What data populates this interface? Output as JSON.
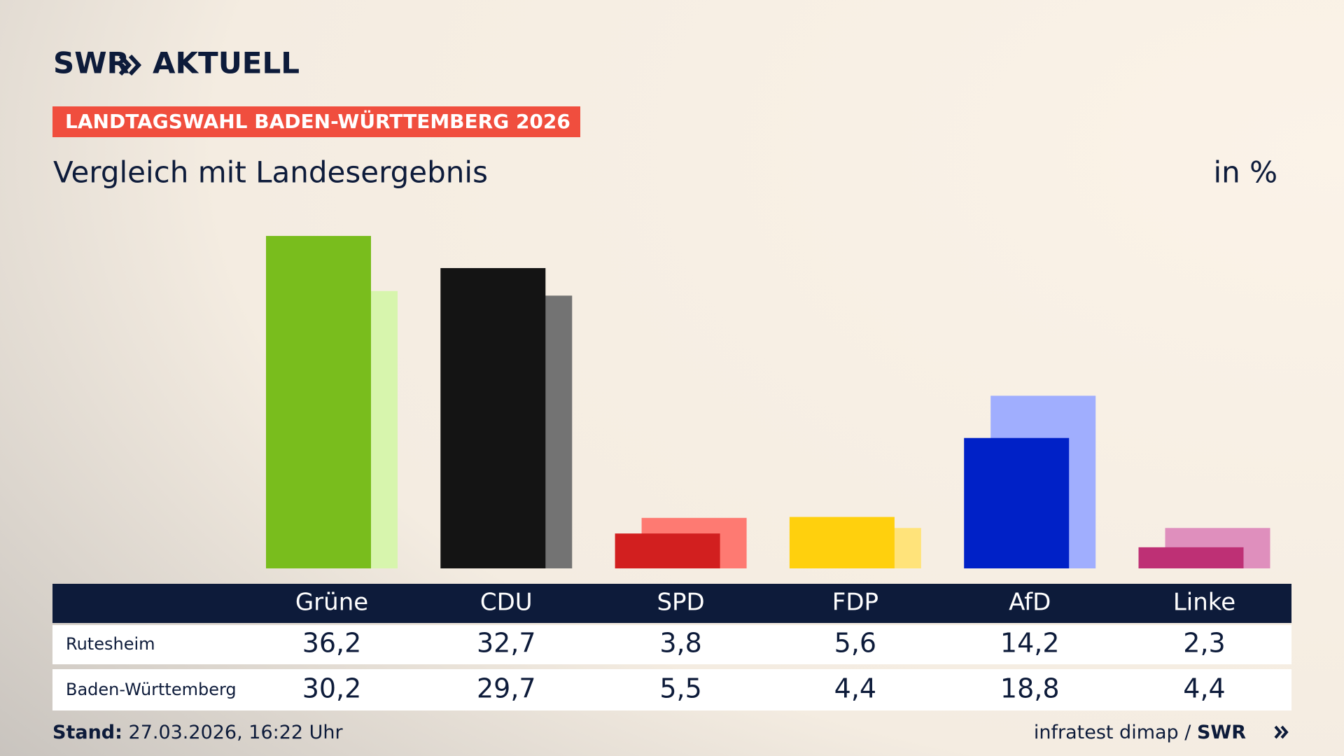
{
  "brand": "SWR",
  "brand_section": "AKTUELL",
  "kicker": "LANDTAGSWAHL BADEN-WÜRTTEMBERG 2026",
  "chart_data": {
    "type": "bar",
    "title": "Vergleich mit Landesergebnis",
    "unit_label": "in %",
    "categories": [
      "Grüne",
      "CDU",
      "SPD",
      "FDP",
      "AfD",
      "Linke"
    ],
    "series": [
      {
        "name": "Rutesheim",
        "values": [
          36.2,
          32.7,
          3.8,
          5.6,
          14.2,
          2.3
        ],
        "value_labels": [
          "36,2",
          "32,7",
          "3,8",
          "5,6",
          "14,2",
          "2,3"
        ],
        "colors": [
          "#79bd1d",
          "#141414",
          "#d21f1f",
          "#ffd00d",
          "#0021c7",
          "#be3075"
        ]
      },
      {
        "name": "Baden-Württemberg",
        "values": [
          30.2,
          29.7,
          5.5,
          4.4,
          18.8,
          4.4
        ],
        "value_labels": [
          "30,2",
          "29,7",
          "5,5",
          "4,4",
          "18,8",
          "4,4"
        ],
        "colors": [
          "#d7f5ad",
          "#737373",
          "#fe7a72",
          "#ffe37a",
          "#a0aefe",
          "#df8fbd"
        ]
      }
    ]
  },
  "footer": {
    "stand_label": "Stand:",
    "stand": "27.03.2026, 16:22 Uhr",
    "source": "infratest dimap /",
    "source_brand": "SWR"
  }
}
